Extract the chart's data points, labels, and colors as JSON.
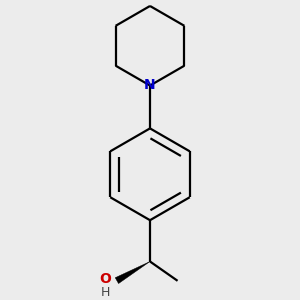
{
  "background_color": "#ececec",
  "bond_color": "#000000",
  "N_color": "#0000cc",
  "O_color": "#cc0000",
  "line_width": 1.6,
  "figsize": [
    3.0,
    3.0
  ],
  "dpi": 100,
  "xlim": [
    -0.65,
    0.65
  ],
  "ylim": [
    -0.95,
    0.95
  ]
}
